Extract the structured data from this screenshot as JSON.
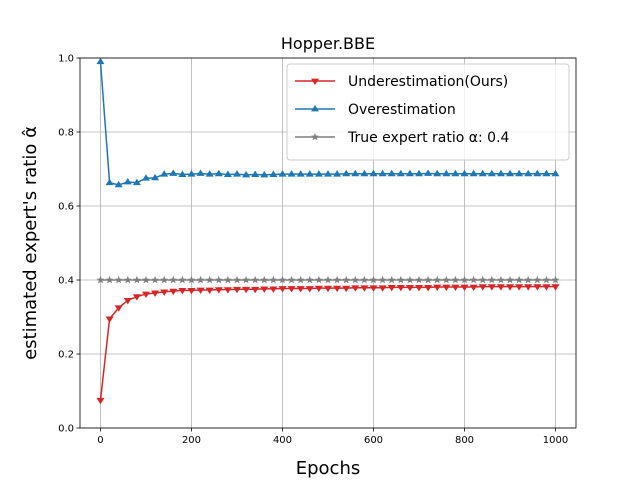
{
  "chart_data": {
    "type": "line",
    "title": "Hopper.BBE",
    "xlabel": "Epochs",
    "ylabel": "estimated expert's ratio α̂",
    "xlim": [
      -45,
      1045
    ],
    "ylim": [
      0.0,
      1.0
    ],
    "xticks": [
      0,
      200,
      400,
      600,
      800,
      1000
    ],
    "yticks": [
      0.0,
      0.2,
      0.4,
      0.6,
      0.8,
      1.0
    ],
    "xtick_labels": [
      "0",
      "200",
      "400",
      "600",
      "800",
      "1000"
    ],
    "ytick_labels": [
      "0.0",
      "0.2",
      "0.4",
      "0.6",
      "0.8",
      "1.0"
    ],
    "grid": true,
    "legend_position": "top-right",
    "x": [
      0,
      20,
      40,
      60,
      80,
      100,
      120,
      140,
      160,
      180,
      200,
      220,
      240,
      260,
      280,
      300,
      320,
      340,
      360,
      380,
      400,
      420,
      440,
      460,
      480,
      500,
      520,
      540,
      560,
      580,
      600,
      620,
      640,
      660,
      680,
      700,
      720,
      740,
      760,
      780,
      800,
      820,
      840,
      860,
      880,
      900,
      920,
      940,
      960,
      980,
      1000
    ],
    "series": [
      {
        "name": "Underestimation(Ours)",
        "color": "#d62728",
        "marker": "triangle-down",
        "values": [
          0.075,
          0.295,
          0.325,
          0.345,
          0.355,
          0.362,
          0.365,
          0.368,
          0.37,
          0.372,
          0.372,
          0.373,
          0.373,
          0.374,
          0.374,
          0.375,
          0.375,
          0.375,
          0.376,
          0.376,
          0.377,
          0.377,
          0.377,
          0.377,
          0.378,
          0.378,
          0.378,
          0.378,
          0.379,
          0.379,
          0.379,
          0.379,
          0.38,
          0.38,
          0.38,
          0.38,
          0.38,
          0.381,
          0.381,
          0.381,
          0.381,
          0.381,
          0.382,
          0.382,
          0.382,
          0.382,
          0.382,
          0.382,
          0.382,
          0.382,
          0.382
        ]
      },
      {
        "name": "Overestimation",
        "color": "#1f77b4",
        "marker": "triangle-up",
        "values": [
          0.99,
          0.663,
          0.657,
          0.665,
          0.663,
          0.675,
          0.676,
          0.686,
          0.688,
          0.685,
          0.686,
          0.688,
          0.686,
          0.687,
          0.685,
          0.686,
          0.684,
          0.685,
          0.684,
          0.685,
          0.686,
          0.686,
          0.686,
          0.686,
          0.686,
          0.686,
          0.686,
          0.687,
          0.687,
          0.687,
          0.687,
          0.687,
          0.687,
          0.687,
          0.687,
          0.687,
          0.688,
          0.687,
          0.687,
          0.687,
          0.687,
          0.687,
          0.687,
          0.687,
          0.687,
          0.687,
          0.687,
          0.687,
          0.687,
          0.687,
          0.687
        ]
      },
      {
        "name": "True expert ratio α: 0.4",
        "color": "#7f7f7f",
        "marker": "star",
        "values": [
          0.4,
          0.4,
          0.4,
          0.4,
          0.4,
          0.4,
          0.4,
          0.4,
          0.4,
          0.4,
          0.4,
          0.4,
          0.4,
          0.4,
          0.4,
          0.4,
          0.4,
          0.4,
          0.4,
          0.4,
          0.4,
          0.4,
          0.4,
          0.4,
          0.4,
          0.4,
          0.4,
          0.4,
          0.4,
          0.4,
          0.4,
          0.4,
          0.4,
          0.4,
          0.4,
          0.4,
          0.4,
          0.4,
          0.4,
          0.4,
          0.4,
          0.4,
          0.4,
          0.4,
          0.4,
          0.4,
          0.4,
          0.4,
          0.4,
          0.4,
          0.4
        ]
      }
    ]
  }
}
